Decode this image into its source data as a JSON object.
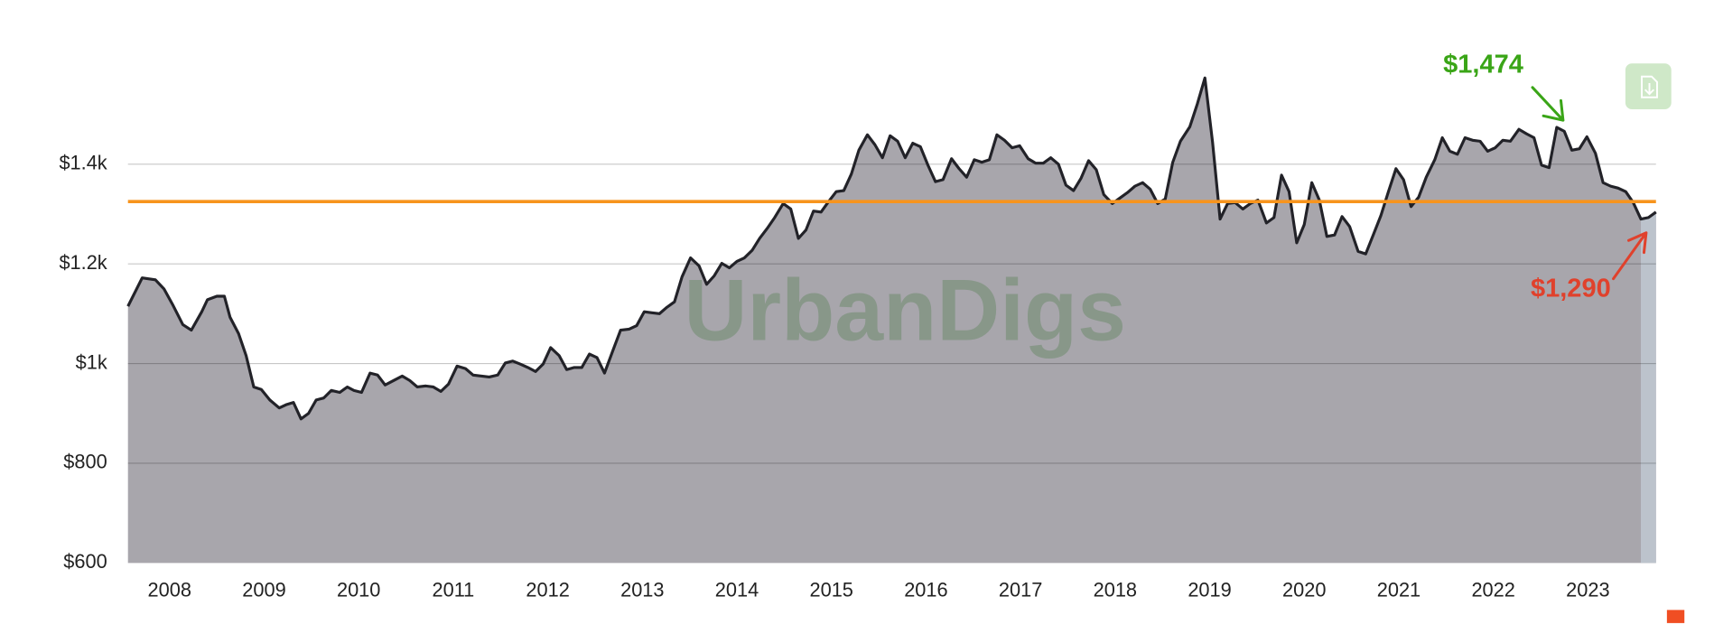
{
  "chart_data": {
    "type": "area",
    "watermark": "UrbanDigs",
    "x": [
      2007.56,
      2007.71,
      2007.85,
      2007.94,
      2008.03,
      2008.14,
      2008.23,
      2008.34,
      2008.4,
      2008.5,
      2008.58,
      2008.64,
      2008.73,
      2008.81,
      2008.89,
      2008.97,
      2009.06,
      2009.16,
      2009.24,
      2009.31,
      2009.39,
      2009.47,
      2009.55,
      2009.63,
      2009.71,
      2009.8,
      2009.88,
      2009.95,
      2010.03,
      2010.12,
      2010.2,
      2010.28,
      2010.37,
      2010.46,
      2010.54,
      2010.62,
      2010.71,
      2010.79,
      2010.87,
      2010.95,
      2011.04,
      2011.13,
      2011.21,
      2011.29,
      2011.38,
      2011.47,
      2011.55,
      2011.63,
      2011.71,
      2011.79,
      2011.87,
      2011.95,
      2012.03,
      2012.12,
      2012.2,
      2012.28,
      2012.36,
      2012.44,
      2012.52,
      2012.6,
      2012.69,
      2012.77,
      2012.86,
      2012.94,
      2013.02,
      2013.1,
      2013.18,
      2013.26,
      2013.34,
      2013.42,
      2013.51,
      2013.6,
      2013.68,
      2013.76,
      2013.84,
      2013.92,
      2014.0,
      2014.08,
      2014.16,
      2014.24,
      2014.32,
      2014.4,
      2014.49,
      2014.57,
      2014.65,
      2014.73,
      2014.81,
      2014.89,
      2014.97,
      2015.05,
      2015.13,
      2015.21,
      2015.29,
      2015.38,
      2015.46,
      2015.54,
      2015.62,
      2015.7,
      2015.78,
      2015.86,
      2015.94,
      2016.02,
      2016.1,
      2016.18,
      2016.27,
      2016.35,
      2016.43,
      2016.51,
      2016.59,
      2016.67,
      2016.75,
      2016.83,
      2016.91,
      2016.99,
      2017.08,
      2017.16,
      2017.24,
      2017.32,
      2017.4,
      2017.48,
      2017.56,
      2017.64,
      2017.72,
      2017.8,
      2017.88,
      2017.97,
      2018.05,
      2018.13,
      2018.21,
      2018.29,
      2018.37,
      2018.45,
      2018.53,
      2018.61,
      2018.69,
      2018.79,
      2018.87,
      2018.95,
      2019.03,
      2019.11,
      2019.19,
      2019.27,
      2019.35,
      2019.43,
      2019.51,
      2019.6,
      2019.68,
      2019.76,
      2019.84,
      2019.92,
      2020.0,
      2020.08,
      2020.16,
      2020.24,
      2020.32,
      2020.4,
      2020.48,
      2020.57,
      2020.65,
      2020.73,
      2020.81,
      2020.89,
      2020.97,
      2021.05,
      2021.13,
      2021.21,
      2021.29,
      2021.38,
      2021.46,
      2021.54,
      2021.62,
      2021.7,
      2021.78,
      2021.86,
      2021.94,
      2022.02,
      2022.1,
      2022.18,
      2022.27,
      2022.35,
      2022.43,
      2022.51,
      2022.59,
      2022.67,
      2022.75,
      2022.83,
      2022.91,
      2022.99,
      2023.08,
      2023.16,
      2023.24,
      2023.32,
      2023.4,
      2023.48,
      2023.56,
      2023.64,
      2023.72
    ],
    "values": [
      1115,
      1172,
      1168,
      1150,
      1119,
      1078,
      1067,
      1104,
      1128,
      1135,
      1135,
      1093,
      1060,
      1016,
      953,
      948,
      927,
      911,
      918,
      922,
      889,
      900,
      927,
      931,
      946,
      942,
      953,
      946,
      942,
      981,
      977,
      957,
      966,
      975,
      966,
      953,
      955,
      953,
      944,
      959,
      995,
      990,
      977,
      975,
      973,
      977,
      1001,
      1005,
      999,
      992,
      984,
      999,
      1032,
      1016,
      988,
      992,
      992,
      1019,
      1012,
      981,
      1027,
      1067,
      1069,
      1076,
      1104,
      1102,
      1100,
      1113,
      1124,
      1174,
      1212,
      1196,
      1159,
      1176,
      1201,
      1192,
      1205,
      1212,
      1227,
      1251,
      1271,
      1293,
      1321,
      1310,
      1251,
      1268,
      1306,
      1304,
      1325,
      1345,
      1347,
      1380,
      1428,
      1459,
      1439,
      1413,
      1457,
      1446,
      1413,
      1442,
      1435,
      1398,
      1365,
      1369,
      1411,
      1391,
      1374,
      1409,
      1404,
      1409,
      1459,
      1448,
      1433,
      1437,
      1411,
      1402,
      1402,
      1413,
      1400,
      1358,
      1347,
      1372,
      1407,
      1389,
      1339,
      1321,
      1332,
      1343,
      1356,
      1363,
      1350,
      1321,
      1330,
      1404,
      1446,
      1475,
      1521,
      1573,
      1444,
      1290,
      1321,
      1323,
      1310,
      1321,
      1328,
      1282,
      1293,
      1378,
      1345,
      1242,
      1279,
      1363,
      1328,
      1255,
      1258,
      1295,
      1275,
      1225,
      1220,
      1258,
      1297,
      1345,
      1391,
      1369,
      1315,
      1334,
      1374,
      1409,
      1453,
      1426,
      1420,
      1453,
      1448,
      1446,
      1426,
      1433,
      1448,
      1446,
      1470,
      1461,
      1453,
      1398,
      1393,
      1474,
      1466,
      1428,
      1431,
      1455,
      1422,
      1363,
      1356,
      1352,
      1345,
      1323,
      1290,
      1293,
      1304
    ],
    "line_color": "#222228",
    "fill": "#a8a6ac",
    "recent_fill": "#bcc3cc",
    "reference_line": {
      "value": 1325,
      "color": "#f7941d"
    },
    "annotations": [
      {
        "text": "$1,474",
        "color": "#3aa517"
      },
      {
        "text": "$1,290",
        "color": "#e0412c"
      }
    ],
    "xlim": [
      2007.56,
      2023.72
    ],
    "xticks": [
      2008,
      2009,
      2010,
      2011,
      2012,
      2013,
      2014,
      2015,
      2016,
      2017,
      2018,
      2019,
      2020,
      2021,
      2022,
      2023
    ],
    "ylim": [
      600,
      1600
    ],
    "yticks": [
      {
        "value": 600,
        "label": "$600"
      },
      {
        "value": 800,
        "label": "$800"
      },
      {
        "value": 1000,
        "label": "$1k"
      },
      {
        "value": 1200,
        "label": "$1.2k"
      },
      {
        "value": 1400,
        "label": "$1.4k"
      }
    ],
    "grid": true
  }
}
